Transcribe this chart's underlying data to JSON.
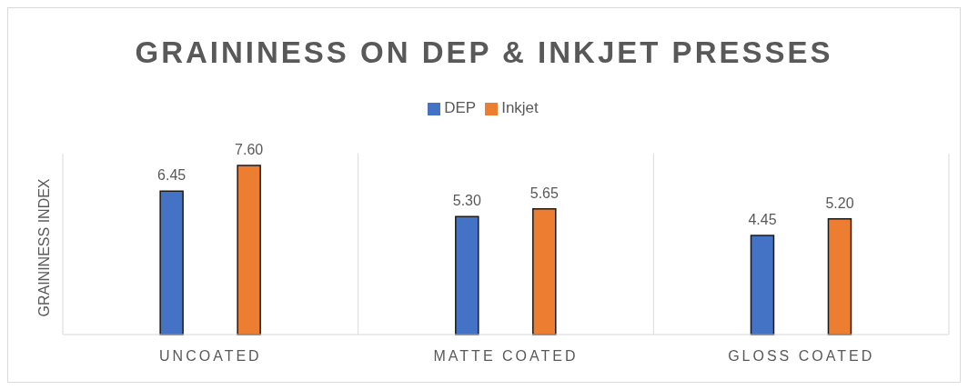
{
  "chart_data": {
    "type": "bar",
    "title": "GRAININESS ON DEP & INKJET PRESSES",
    "ylabel": "GRAININESS INDEX",
    "categories": [
      "UNCOATED",
      "MATTE COATED",
      "GLOSS COATED"
    ],
    "series": [
      {
        "name": "DEP",
        "color": "#4472c4",
        "values": [
          6.45,
          5.3,
          4.45
        ],
        "value_labels": [
          "6.45",
          "5.30",
          "4.45"
        ]
      },
      {
        "name": "Inkjet",
        "color": "#ed7d31",
        "values": [
          7.6,
          5.65,
          5.2
        ],
        "value_labels": [
          "7.60",
          "5.65",
          "5.20"
        ]
      }
    ],
    "legend": "top",
    "grid": "x"
  }
}
